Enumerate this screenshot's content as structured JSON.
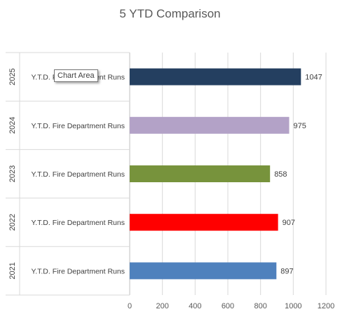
{
  "chart_data": {
    "type": "bar",
    "orientation": "horizontal",
    "title": "5 YTD Comparison",
    "category_label": "Y.T.D. Fire Department Runs",
    "groups": [
      "2025",
      "2024",
      "2023",
      "2022",
      "2021"
    ],
    "values": [
      1047,
      975,
      858,
      907,
      897
    ],
    "colors": [
      "#243F60",
      "#B3A2C7",
      "#77933C",
      "#FF0000",
      "#4F81BD"
    ],
    "xlim": [
      0,
      1200
    ],
    "xticks": [
      0,
      200,
      400,
      600,
      800,
      1000,
      1200
    ],
    "grid": true,
    "xlabel": "",
    "ylabel": ""
  },
  "tooltip": {
    "text": "Chart Area"
  }
}
